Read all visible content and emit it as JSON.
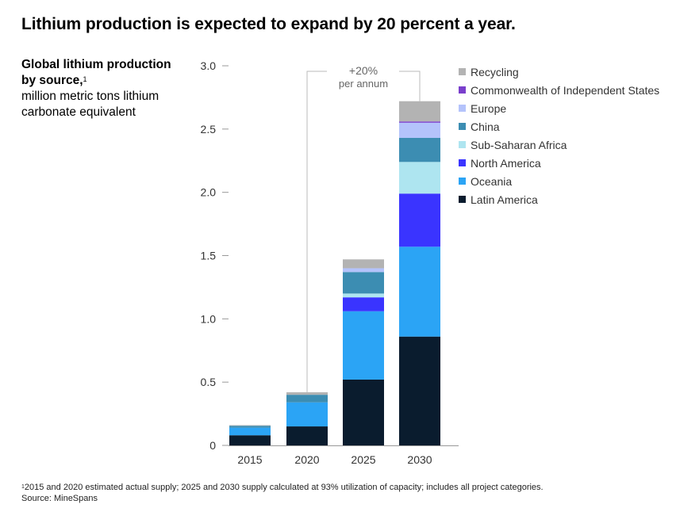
{
  "headline": "Lithium production is expected to expand by 20 percent a year.",
  "side_label": {
    "title": "Global lithium production by source,",
    "note_marker": "1",
    "unit": "million metric tons lithium carbonate equivalent"
  },
  "annotation": {
    "line1": "+20%",
    "line2": "per annum"
  },
  "colors": {
    "Recycling": "#b3b3b3",
    "Commonwealth of Independent States": "#7a3fcc",
    "Europe": "#b4c3fb",
    "China": "#3c8db2",
    "Sub-Saharan Africa": "#aee5f0",
    "North America": "#3a34ff",
    "Oceania": "#2ba4f5",
    "Latin America": "#0a1c2e"
  },
  "chart_data": {
    "type": "bar",
    "stacked": true,
    "categories": [
      "2015",
      "2020",
      "2025",
      "2030"
    ],
    "ylim": [
      0,
      3.0
    ],
    "yticks": [
      "0",
      "0.5",
      "1.0",
      "1.5",
      "2.0",
      "2.5",
      "3.0"
    ],
    "ytick_values": [
      0,
      0.5,
      1.0,
      1.5,
      2.0,
      2.5,
      3.0
    ],
    "grid": false,
    "legend_position": "top-right",
    "series": [
      {
        "name": "Latin America",
        "values": [
          0.08,
          0.15,
          0.52,
          0.86
        ]
      },
      {
        "name": "Oceania",
        "values": [
          0.06,
          0.19,
          0.54,
          0.71
        ]
      },
      {
        "name": "North America",
        "values": [
          0.0,
          0.0,
          0.11,
          0.42
        ]
      },
      {
        "name": "Sub-Saharan Africa",
        "values": [
          0.0,
          0.0,
          0.03,
          0.25
        ]
      },
      {
        "name": "China",
        "values": [
          0.015,
          0.06,
          0.17,
          0.19
        ]
      },
      {
        "name": "Europe",
        "values": [
          0.0,
          0.0,
          0.03,
          0.12
        ]
      },
      {
        "name": "Commonwealth of Independent States",
        "values": [
          0.0,
          0.0,
          0.0,
          0.01
        ]
      },
      {
        "name": "Recycling",
        "values": [
          0.005,
          0.02,
          0.07,
          0.16
        ]
      }
    ],
    "legend_order": [
      "Recycling",
      "Commonwealth of Independent States",
      "Europe",
      "China",
      "Sub-Saharan Africa",
      "North America",
      "Oceania",
      "Latin America"
    ]
  },
  "footnote": {
    "marker": "1",
    "text": "2015 and 2020 estimated actual supply; 2025 and 2030 supply calculated at 93% utilization of capacity; includes all project categories.",
    "source": "Source: MineSpans"
  }
}
